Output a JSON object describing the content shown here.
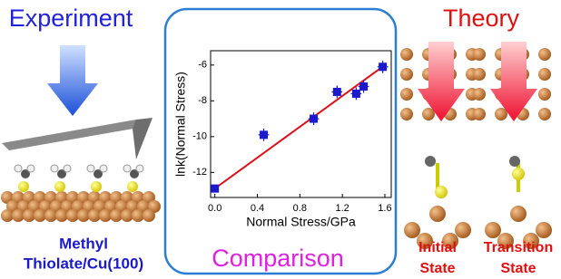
{
  "experiment_label": "Experiment",
  "theory_label": "Theory",
  "sample_label": {
    "line1": "Methyl",
    "line2": "Thiolate/Cu(100)"
  },
  "comparison_label": "Comparison",
  "states": [
    {
      "line1": "Initial",
      "line2": "State"
    },
    {
      "line1": "Transition",
      "line2": "State"
    }
  ],
  "chart_data": {
    "type": "scatter",
    "x_label": "Normal Stress/GPa",
    "y_label": "lnk(Normal Stress)",
    "x": [
      0,
      0.46,
      0.93,
      1.15,
      1.33,
      1.4,
      1.58
    ],
    "values": [
      -12.9,
      -9.9,
      -9.0,
      -7.5,
      -7.6,
      -7.2,
      -6.1
    ],
    "x_err": [
      0,
      0.05,
      0.05,
      0.05,
      0.05,
      0.05,
      0.05
    ],
    "y_err": [
      0,
      0.35,
      0.35,
      0.35,
      0.35,
      0.35,
      0.35
    ],
    "color": "#1a1acc",
    "fit": {
      "x": [
        0,
        1.6
      ],
      "y": [
        -12.9,
        -6.0
      ],
      "color": "#e0101a"
    },
    "xlim": [
      -0.04,
      1.66
    ],
    "ylim": [
      -13.4,
      -5.2
    ],
    "xticks": [
      {
        "value": 0,
        "label": "0.0"
      },
      0.4,
      0.8,
      1.2,
      1.6
    ],
    "yticks": [
      -6,
      -8,
      -10,
      -12
    ]
  }
}
